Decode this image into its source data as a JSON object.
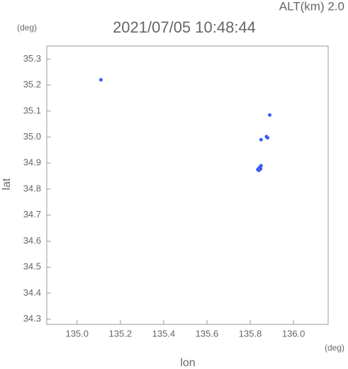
{
  "chart_data": {
    "type": "scatter",
    "title": "2021/07/05 10:48:44",
    "annotation": "ALT(km) 2.0",
    "y_unit": "(deg)",
    "x_unit": "(deg)",
    "xlabel": "lon",
    "ylabel": "lat",
    "color": "#3a5cf0",
    "x": [
      135.11,
      135.89,
      135.875,
      135.88,
      135.85,
      135.84,
      135.845,
      135.835,
      135.85,
      135.84,
      135.848
    ],
    "y": [
      35.22,
      35.085,
      35.002,
      34.997,
      34.99,
      34.88,
      34.885,
      34.875,
      34.89,
      34.872,
      34.878
    ],
    "xlim": [
      134.86,
      136.16
    ],
    "ylim": [
      34.28,
      35.35
    ],
    "xticks": [
      {
        "value": 135,
        "label": "135.0"
      },
      135.2,
      135.4,
      135.6,
      135.8,
      {
        "value": 136,
        "label": "136.0"
      }
    ],
    "yticks": [
      34.3,
      34.4,
      34.5,
      34.6,
      34.7,
      34.8,
      34.9,
      {
        "value": 35,
        "label": "35.0"
      },
      35.1,
      35.2,
      35.3
    ]
  }
}
